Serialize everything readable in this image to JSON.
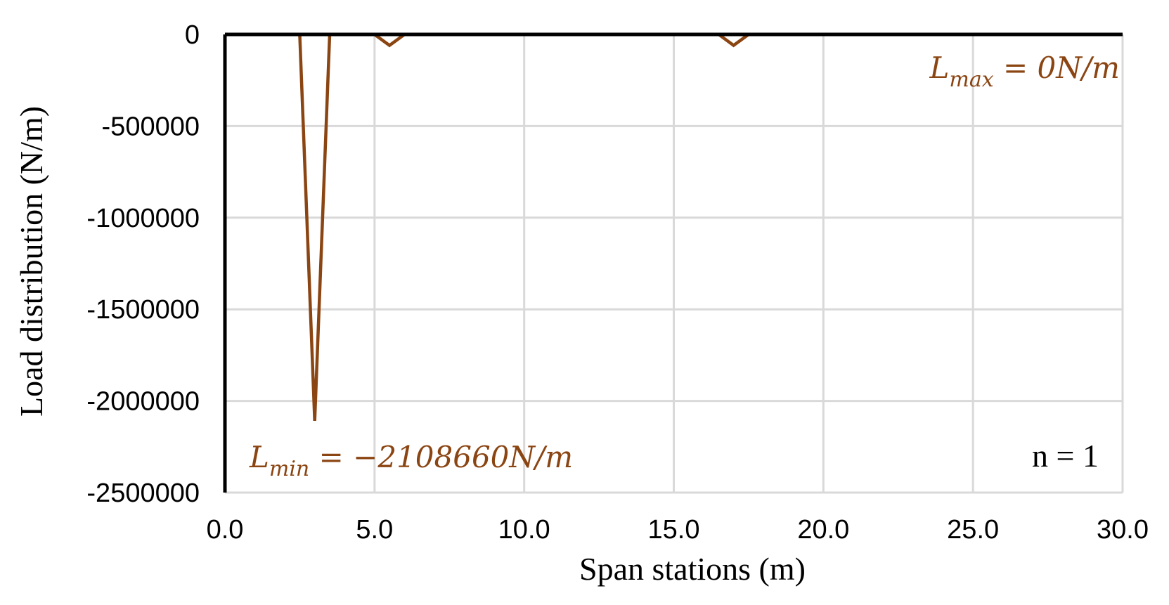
{
  "chart_data": {
    "type": "line",
    "xlabel": "Span stations (m)",
    "ylabel": "Load distribution (N/m)",
    "xlim": [
      0,
      30
    ],
    "ylim": [
      -2500000,
      0
    ],
    "x_ticks": [
      0,
      5,
      10,
      15,
      20,
      25,
      30
    ],
    "x_tick_labels": [
      "0.0",
      "5.0",
      "10.0",
      "15.0",
      "20.0",
      "25.0",
      "30.0"
    ],
    "y_ticks": [
      0,
      -500000,
      -1000000,
      -1500000,
      -2000000,
      -2500000
    ],
    "y_tick_labels": [
      "0",
      "-500000",
      "-1000000",
      "-1500000",
      "-2000000",
      "-2500000"
    ],
    "grid": true,
    "series_color": "#8B4513",
    "series": [
      {
        "x": [
          0.0,
          2.5,
          3.0,
          3.5,
          5.0,
          5.5,
          6.0,
          16.5,
          17.0,
          17.5,
          29.3
        ],
        "values": [
          0,
          0,
          -2108660,
          0,
          0,
          -60000,
          0,
          0,
          -60000,
          0,
          0
        ]
      }
    ],
    "annotations": {
      "lmax": {
        "base": "L",
        "sub": "max",
        "rest": " = 0N/m"
      },
      "lmin": {
        "base": "L",
        "sub": "min",
        "rest": " = −2108660N/m"
      },
      "n_label": "n = 1"
    }
  }
}
